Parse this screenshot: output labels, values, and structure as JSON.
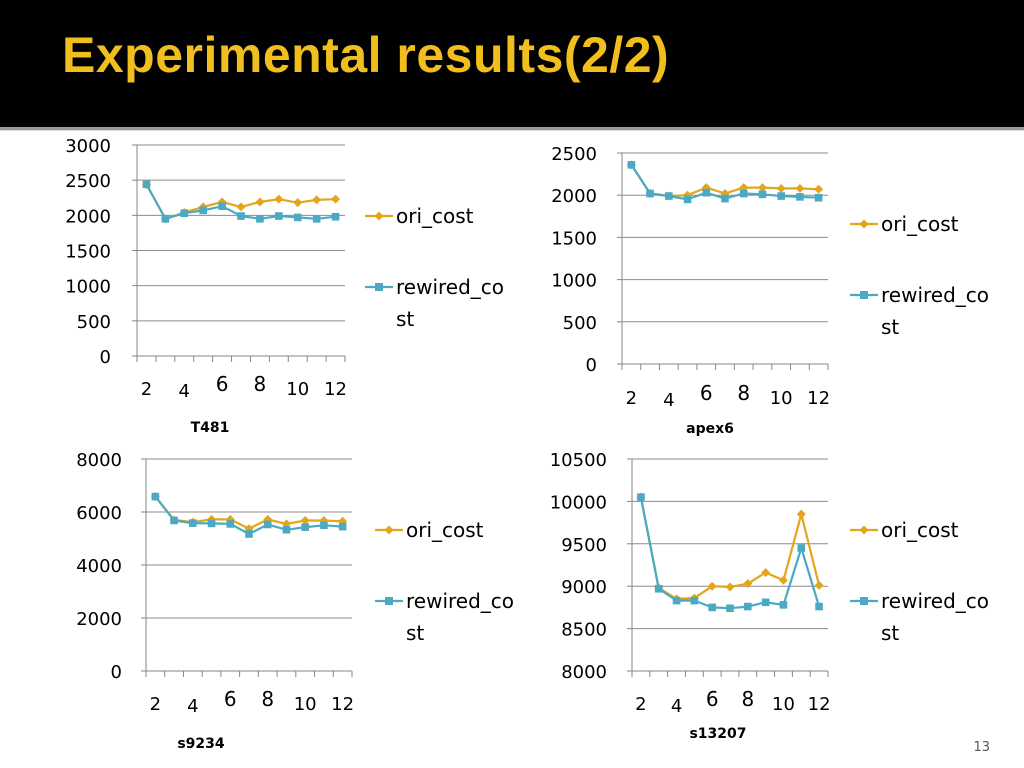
{
  "slide": {
    "title": "Experimental results(2/2)",
    "page_number": "13"
  },
  "colors": {
    "ori_cost": "#e3a51a",
    "rewired_cost": "#4ba9c3",
    "axis": "#868686",
    "title_bar": "#000000",
    "title_text": "#f0bf1e"
  },
  "legend": {
    "ori_label": "ori_cost",
    "rewired_label_1": "rewired_co",
    "rewired_label_2": "st"
  },
  "chart_data": [
    {
      "type": "line",
      "title": "T481",
      "x": [
        2,
        3,
        4,
        5,
        6,
        7,
        8,
        9,
        10,
        11,
        12
      ],
      "xticks": [
        "2",
        "4",
        "6",
        "8",
        "10",
        "12"
      ],
      "ylim": [
        0,
        3000
      ],
      "yticks": [
        "0",
        "500",
        "1000",
        "1500",
        "2000",
        "2500",
        "3000"
      ],
      "legend_position": "right",
      "series": [
        {
          "name": "ori_cost",
          "values": [
            2440,
            1950,
            2040,
            2120,
            2190,
            2120,
            2190,
            2230,
            2180,
            2220,
            2230
          ]
        },
        {
          "name": "rewired_cost",
          "values": [
            2440,
            1950,
            2030,
            2070,
            2130,
            1990,
            1950,
            1990,
            1970,
            1950,
            1980
          ]
        }
      ]
    },
    {
      "type": "line",
      "title": "apex6",
      "x": [
        2,
        3,
        4,
        5,
        6,
        7,
        8,
        9,
        10,
        11,
        12
      ],
      "xticks": [
        "2",
        "4",
        "6",
        "8",
        "10",
        "12"
      ],
      "ylim": [
        0,
        2500
      ],
      "yticks": [
        "0",
        "500",
        "1000",
        "1500",
        "2000",
        "2500"
      ],
      "legend_position": "right",
      "series": [
        {
          "name": "ori_cost",
          "values": [
            2360,
            2020,
            1990,
            2000,
            2090,
            2020,
            2090,
            2090,
            2080,
            2080,
            2070
          ]
        },
        {
          "name": "rewired_cost",
          "values": [
            2360,
            2020,
            1990,
            1950,
            2030,
            1960,
            2020,
            2010,
            1990,
            1980,
            1970
          ]
        }
      ]
    },
    {
      "type": "line",
      "title": "s9234",
      "x": [
        2,
        3,
        4,
        5,
        6,
        7,
        8,
        9,
        10,
        11,
        12
      ],
      "xticks": [
        "2",
        "4",
        "6",
        "8",
        "10",
        "12"
      ],
      "ylim": [
        0,
        8000
      ],
      "yticks": [
        "0",
        "2000",
        "4000",
        "6000",
        "8000"
      ],
      "legend_position": "right",
      "series": [
        {
          "name": "ori_cost",
          "values": [
            6580,
            5700,
            5620,
            5720,
            5720,
            5370,
            5720,
            5550,
            5680,
            5680,
            5650
          ]
        },
        {
          "name": "rewired_cost",
          "values": [
            6580,
            5680,
            5580,
            5570,
            5550,
            5170,
            5530,
            5330,
            5430,
            5500,
            5450
          ]
        }
      ]
    },
    {
      "type": "line",
      "title": "s13207",
      "x": [
        2,
        3,
        4,
        5,
        6,
        7,
        8,
        9,
        10,
        11,
        12
      ],
      "xticks": [
        "2",
        "4",
        "6",
        "8",
        "10",
        "12"
      ],
      "ylim": [
        8000,
        10500
      ],
      "yticks": [
        "8000",
        "8500",
        "9000",
        "9500",
        "10000",
        "10500"
      ],
      "legend_position": "right",
      "series": [
        {
          "name": "ori_cost",
          "values": [
            10050,
            8980,
            8850,
            8860,
            9000,
            8990,
            9030,
            9160,
            9070,
            9850,
            9010
          ]
        },
        {
          "name": "rewired_cost",
          "values": [
            10050,
            8970,
            8830,
            8830,
            8750,
            8740,
            8760,
            8810,
            8780,
            9450,
            8760
          ]
        }
      ]
    }
  ]
}
